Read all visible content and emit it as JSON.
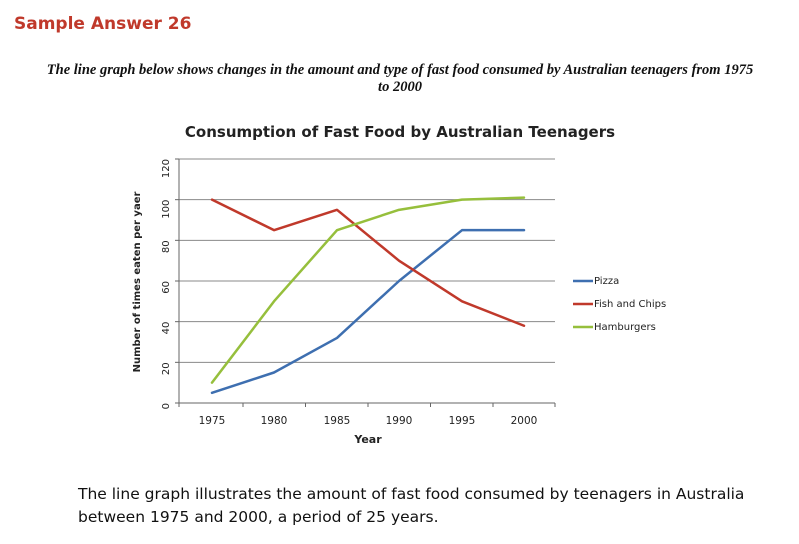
{
  "page": {
    "heading": "Sample Answer 26",
    "prompt": "The line graph below shows changes in the amount and type of fast food consumed by Australian teenagers from 1975 to 2000",
    "body_text": "The line graph illustrates the amount of fast food consumed by teenagers in Australia between 1975 and 2000, a period of 25 years."
  },
  "chart_data": {
    "type": "line",
    "title": "Consumption of Fast Food by Australian Teenagers",
    "xlabel": "Year",
    "ylabel": "Number of times eaten per yaer",
    "x": [
      "1975",
      "1980",
      "1985",
      "1990",
      "1995",
      "2000"
    ],
    "yticks": [
      "0",
      "20",
      "40",
      "60",
      "80",
      "100",
      "120"
    ],
    "ylim": [
      0,
      120
    ],
    "grid": true,
    "legend_position": "right",
    "series": [
      {
        "name": "Pizza",
        "color": "#3e6fb0",
        "values": [
          5,
          15,
          32,
          60,
          85,
          85
        ]
      },
      {
        "name": "Fish and Chips",
        "color": "#c0392b",
        "values": [
          100,
          85,
          95,
          70,
          50,
          38
        ]
      },
      {
        "name": "Hamburgers",
        "color": "#96bf3c",
        "values": [
          10,
          50,
          85,
          95,
          100,
          101
        ]
      }
    ]
  }
}
